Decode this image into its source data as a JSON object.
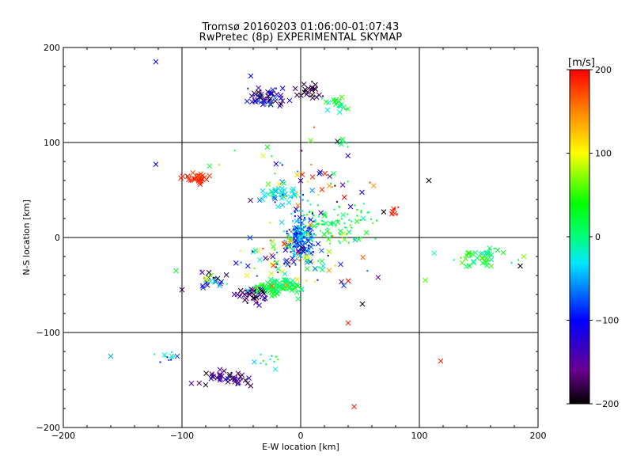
{
  "chart_data": {
    "type": "scatter",
    "title": "Tromsø 20160203 01:06:00-01:07:43",
    "subtitle": "RwPretec (8p) EXPERIMENTAL SKYMAP",
    "xlabel": "E-W location [km]",
    "ylabel": "N-S location [km]",
    "xlim": [
      -200,
      200
    ],
    "ylim": [
      -200,
      200
    ],
    "xticks": [
      "−200",
      "−100",
      "0",
      "100",
      "200"
    ],
    "yticks": [
      "200",
      "100",
      "0",
      "−100",
      "−200"
    ],
    "grid": true,
    "colorbar": {
      "label": "[m/s]",
      "range": [
        -200,
        200
      ],
      "ticks": [
        "200",
        "100",
        "0",
        "−100",
        "−200"
      ]
    },
    "colors": {
      "grid": "#000000",
      "frame": "#000000"
    },
    "clusters": [
      {
        "cx": -88,
        "cy": 62,
        "rx": 12,
        "ry": 6,
        "n": 40,
        "vmin": 170,
        "vmax": 200,
        "sym": "x"
      },
      {
        "cx": -30,
        "cy": 148,
        "rx": 16,
        "ry": 10,
        "n": 55,
        "vmin": -200,
        "vmax": -60,
        "sym": "x"
      },
      {
        "cx": 8,
        "cy": 155,
        "rx": 10,
        "ry": 8,
        "n": 25,
        "vmin": -200,
        "vmax": -170,
        "sym": "x"
      },
      {
        "cx": 30,
        "cy": 140,
        "rx": 12,
        "ry": 12,
        "n": 20,
        "vmin": -30,
        "vmax": 60,
        "sym": "x"
      },
      {
        "cx": 35,
        "cy": 100,
        "rx": 6,
        "ry": 6,
        "n": 10,
        "vmin": 0,
        "vmax": 30,
        "sym": "dot"
      },
      {
        "cx": 0,
        "cy": 0,
        "rx": 12,
        "ry": 25,
        "n": 200,
        "vmin": -130,
        "vmax": -20,
        "sym": "dot"
      },
      {
        "cx": 30,
        "cy": 15,
        "rx": 35,
        "ry": 20,
        "n": 90,
        "vmin": -20,
        "vmax": 60,
        "sym": "dot"
      },
      {
        "cx": -15,
        "cy": 45,
        "rx": 20,
        "ry": 10,
        "n": 40,
        "vmin": -70,
        "vmax": 0,
        "sym": "x"
      },
      {
        "cx": -20,
        "cy": -52,
        "rx": 18,
        "ry": 8,
        "n": 90,
        "vmin": -10,
        "vmax": 50,
        "sym": "x"
      },
      {
        "cx": -40,
        "cy": -62,
        "rx": 16,
        "ry": 10,
        "n": 40,
        "vmin": -200,
        "vmax": -120,
        "sym": "x"
      },
      {
        "cx": -75,
        "cy": -45,
        "rx": 14,
        "ry": 10,
        "n": 25,
        "vmin": -200,
        "vmax": 120,
        "sym": "x"
      },
      {
        "cx": 150,
        "cy": -20,
        "rx": 30,
        "ry": 10,
        "n": 45,
        "vmin": -30,
        "vmax": 60,
        "sym": "x"
      },
      {
        "cx": 80,
        "cy": 28,
        "rx": 5,
        "ry": 8,
        "n": 10,
        "vmin": 180,
        "vmax": 200,
        "sym": "dot"
      },
      {
        "cx": -65,
        "cy": -148,
        "rx": 25,
        "ry": 8,
        "n": 45,
        "vmin": -200,
        "vmax": -110,
        "sym": "x"
      },
      {
        "cx": -110,
        "cy": -125,
        "rx": 12,
        "ry": 6,
        "n": 12,
        "vmin": -120,
        "vmax": 0,
        "sym": "dot"
      },
      {
        "cx": -25,
        "cy": -130,
        "rx": 15,
        "ry": 12,
        "n": 12,
        "vmin": -60,
        "vmax": 60,
        "sym": "dot"
      },
      {
        "cx": 0,
        "cy": -20,
        "rx": 55,
        "ry": 40,
        "n": 120,
        "vmin": -200,
        "vmax": 200,
        "sym": "mix"
      },
      {
        "cx": 0,
        "cy": 60,
        "rx": 60,
        "ry": 45,
        "n": 60,
        "vmin": -200,
        "vmax": 200,
        "sym": "mix"
      }
    ],
    "extra_points": [
      {
        "x": -122,
        "y": 185,
        "v": -100
      },
      {
        "x": -122,
        "y": 77,
        "v": -100
      },
      {
        "x": -160,
        "y": -125,
        "v": -50
      },
      {
        "x": 45,
        "y": -178,
        "v": 190
      },
      {
        "x": 118,
        "y": -130,
        "v": 190
      },
      {
        "x": 108,
        "y": 60,
        "v": -200
      },
      {
        "x": 40,
        "y": -90,
        "v": 190
      },
      {
        "x": 52,
        "y": -70,
        "v": -200
      },
      {
        "x": 70,
        "y": 27,
        "v": -200
      },
      {
        "x": 105,
        "y": -45,
        "v": 60
      },
      {
        "x": -105,
        "y": -35,
        "v": 30
      },
      {
        "x": -100,
        "y": -55,
        "v": -180
      },
      {
        "x": -42,
        "y": 170,
        "v": -100
      },
      {
        "x": 188,
        "y": -20,
        "v": 70
      },
      {
        "x": 185,
        "y": -30,
        "v": -200
      }
    ]
  }
}
